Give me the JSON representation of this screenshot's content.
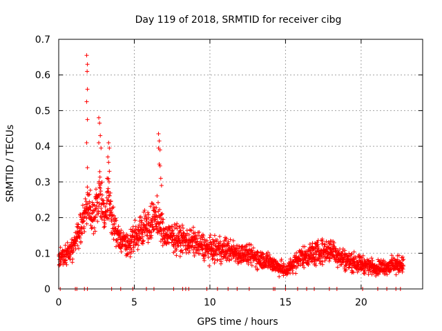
{
  "chart_data": {
    "type": "scatter",
    "title": "Day 119 of 2018, SRMTID for receiver cibg",
    "xlabel": "GPS time / hours",
    "ylabel": "SRMTID / TECUs",
    "xlim": [
      0,
      24.07
    ],
    "ylim": [
      0,
      0.7
    ],
    "x_ticks": [
      0,
      5,
      10,
      15,
      20
    ],
    "y_ticks": [
      0,
      0.1,
      0.2,
      0.3,
      0.4,
      0.5,
      0.6,
      0.7
    ],
    "x_tick_labels": [
      "0",
      "5",
      "10",
      "15",
      "20"
    ],
    "y_tick_labels": [
      "0",
      "0.1",
      "0.2",
      "0.3",
      "0.4",
      "0.5",
      "0.6",
      "0.7"
    ],
    "grid": true,
    "marker": "plus",
    "series": [
      {
        "name": "SRMTID",
        "color": "#ff0000",
        "profile": [
          [
            0.0,
            0.085,
            0.03
          ],
          [
            0.5,
            0.1,
            0.03
          ],
          [
            1.0,
            0.12,
            0.04
          ],
          [
            1.5,
            0.18,
            0.05
          ],
          [
            1.9,
            0.24,
            0.06
          ],
          [
            2.3,
            0.2,
            0.05
          ],
          [
            2.7,
            0.27,
            0.08
          ],
          [
            3.0,
            0.2,
            0.05
          ],
          [
            3.3,
            0.26,
            0.07
          ],
          [
            3.6,
            0.18,
            0.05
          ],
          [
            4.0,
            0.14,
            0.04
          ],
          [
            4.5,
            0.12,
            0.035
          ],
          [
            5.0,
            0.14,
            0.04
          ],
          [
            5.5,
            0.17,
            0.045
          ],
          [
            6.0,
            0.18,
            0.05
          ],
          [
            6.5,
            0.2,
            0.06
          ],
          [
            7.0,
            0.15,
            0.04
          ],
          [
            8.0,
            0.14,
            0.04
          ],
          [
            9.0,
            0.13,
            0.04
          ],
          [
            10.0,
            0.11,
            0.035
          ],
          [
            11.0,
            0.11,
            0.035
          ],
          [
            12.0,
            0.1,
            0.03
          ],
          [
            13.0,
            0.09,
            0.03
          ],
          [
            14.0,
            0.075,
            0.025
          ],
          [
            15.0,
            0.05,
            0.02
          ],
          [
            16.0,
            0.09,
            0.03
          ],
          [
            17.0,
            0.1,
            0.035
          ],
          [
            18.0,
            0.11,
            0.035
          ],
          [
            19.0,
            0.08,
            0.03
          ],
          [
            20.0,
            0.07,
            0.025
          ],
          [
            21.0,
            0.06,
            0.02
          ],
          [
            22.0,
            0.065,
            0.025
          ],
          [
            22.8,
            0.07,
            0.025
          ]
        ],
        "point_count": 2100,
        "peaks": [
          [
            1.85,
            0.655
          ],
          [
            1.9,
            0.63
          ],
          [
            1.88,
            0.61
          ],
          [
            1.9,
            0.56
          ],
          [
            1.85,
            0.525
          ],
          [
            1.9,
            0.475
          ],
          [
            1.85,
            0.41
          ],
          [
            1.9,
            0.34
          ],
          [
            2.65,
            0.48
          ],
          [
            2.7,
            0.465
          ],
          [
            2.75,
            0.43
          ],
          [
            2.65,
            0.41
          ],
          [
            2.8,
            0.395
          ],
          [
            3.3,
            0.41
          ],
          [
            3.35,
            0.395
          ],
          [
            3.25,
            0.37
          ],
          [
            3.3,
            0.355
          ],
          [
            3.35,
            0.33
          ],
          [
            3.2,
            0.31
          ],
          [
            6.6,
            0.435
          ],
          [
            6.65,
            0.415
          ],
          [
            6.6,
            0.395
          ],
          [
            6.7,
            0.39
          ],
          [
            6.65,
            0.35
          ],
          [
            6.7,
            0.345
          ],
          [
            6.75,
            0.31
          ],
          [
            6.8,
            0.29
          ]
        ],
        "zeros": [
          0.1,
          1.1,
          1.2,
          1.7,
          1.9,
          3.5,
          4.1,
          4.9,
          5.8,
          6.3,
          7.6,
          8.2,
          8.4,
          8.6,
          9.8,
          10.5,
          11.2,
          11.8,
          12.6,
          14.2,
          14.3,
          15.0,
          15.8,
          16.4,
          16.9,
          17.9,
          18.4,
          20.1,
          21.1,
          21.7,
          22.3,
          22.6
        ]
      }
    ]
  }
}
